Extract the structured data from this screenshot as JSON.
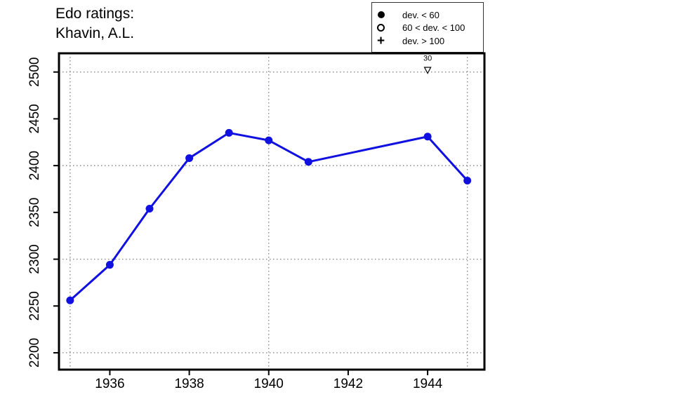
{
  "chart_data": {
    "type": "line",
    "title_line1": "Edo ratings:",
    "title_line2": "Khavin, A.L.",
    "title": "Edo ratings: Khavin, A.L.",
    "xlabel": "",
    "ylabel": "",
    "xlim": [
      1934.72,
      1945.43
    ],
    "ylim": [
      2182,
      2520
    ],
    "x_ticks": [
      1936,
      1938,
      1940,
      1942,
      1944
    ],
    "y_ticks": [
      2200,
      2250,
      2300,
      2350,
      2400,
      2450,
      2500
    ],
    "x_gridlines": [
      1935,
      1940,
      1945
    ],
    "y_gridlines": [
      2200,
      2300,
      2400,
      2500
    ],
    "grid_style": "dotted",
    "legend_position": "top-right",
    "colors": {
      "line": "#1010E0",
      "grid": "#8a8a8a",
      "frame": "#000000",
      "text": "#000000"
    },
    "series": [
      {
        "name": "Edo rating",
        "marker": "filled-circle",
        "points": [
          [
            1935,
            2256
          ],
          [
            1936,
            2294
          ],
          [
            1937,
            2354
          ],
          [
            1938,
            2408
          ],
          [
            1939,
            2435
          ],
          [
            1940,
            2427
          ],
          [
            1941,
            2404
          ],
          [
            1944,
            2431
          ],
          [
            1945,
            2384
          ]
        ]
      }
    ],
    "annotations": [
      {
        "x": 1944,
        "y": 2502,
        "symbol": "open-triangle-down",
        "label": "30",
        "label_y": 2512
      }
    ],
    "legend": {
      "items": [
        {
          "symbol": "filled-circle",
          "label": "dev. < 60"
        },
        {
          "symbol": "open-circle",
          "label": "60 < dev. < 100"
        },
        {
          "symbol": "plus",
          "label": "dev. > 100"
        }
      ]
    }
  }
}
